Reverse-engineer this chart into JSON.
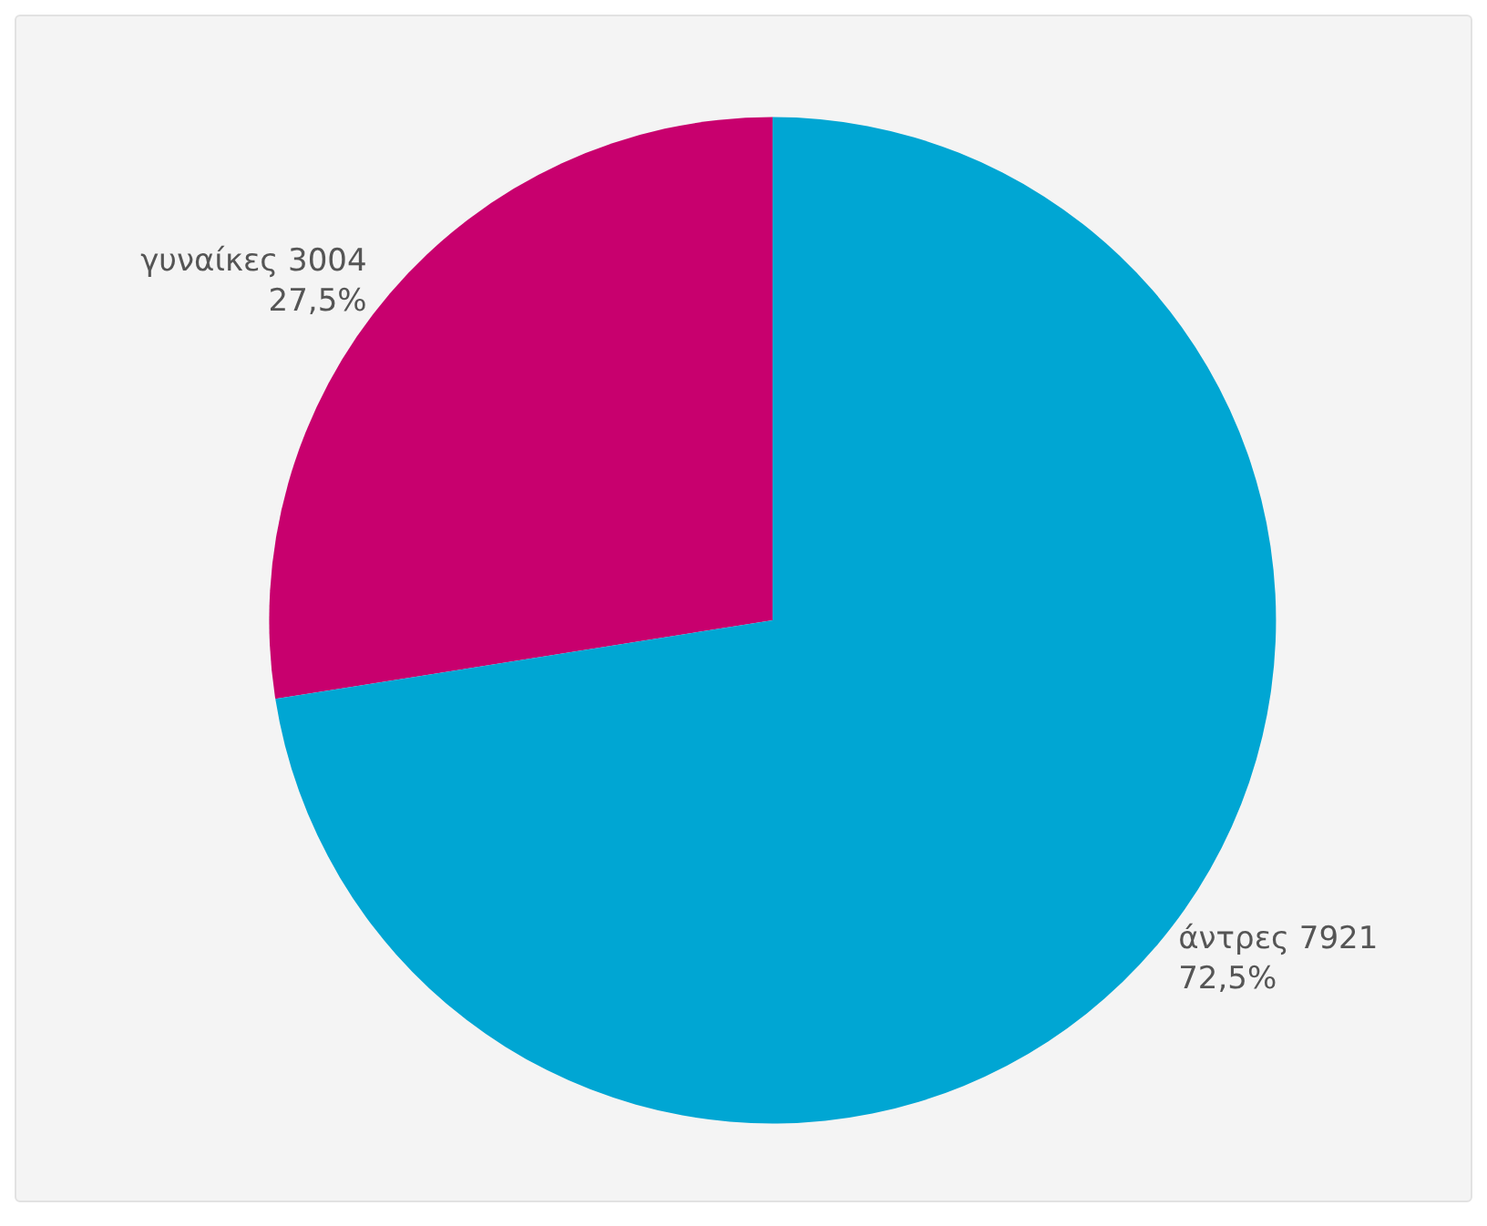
{
  "chart_data": {
    "type": "pie",
    "categories": [
      "γυναίκες",
      "άντρες"
    ],
    "values": [
      3004,
      7921
    ],
    "colors": [
      "#c8006e",
      "#00a6d3"
    ],
    "value_labels": [
      "3004\n27,5%",
      "7921\n72,5%"
    ]
  }
}
